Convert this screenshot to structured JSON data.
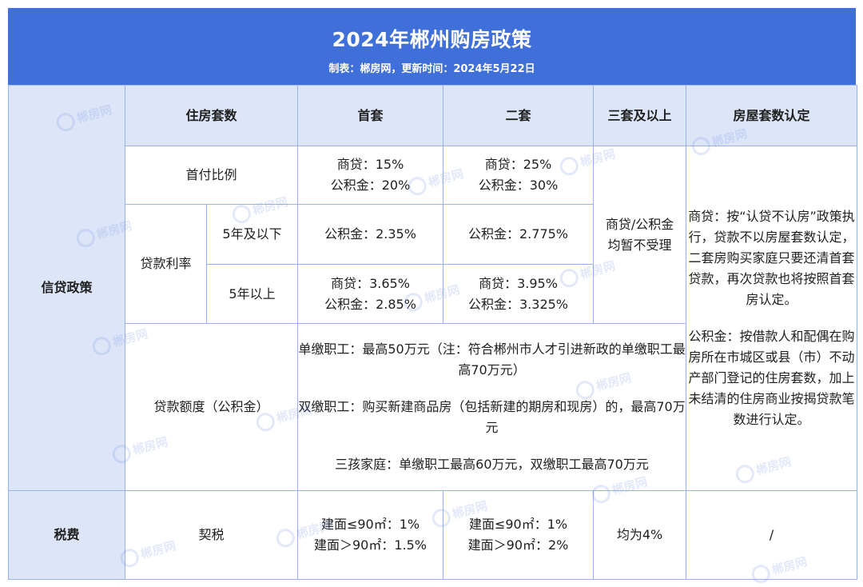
{
  "header": {
    "title": "2024年郴州购房政策",
    "subtitle": "制表：郴房网，更新时间：2024年5月22日"
  },
  "columns": {
    "housing_count": "住房套数",
    "first": "首套",
    "second": "二套",
    "third_plus": "三套及以上",
    "identification": "房屋套数认定"
  },
  "categories": {
    "credit": "信贷政策",
    "tax": "税费"
  },
  "down_payment": {
    "label": "首付比例",
    "first_line1": "商贷：15%",
    "first_line2": "公积金：20%",
    "second_line1": "商贷：25%",
    "second_line2": "公积金：30%"
  },
  "third_plus_note": {
    "line1": "商贷/公积金",
    "line2": "均暂不受理"
  },
  "interest": {
    "label": "贷款利率",
    "under5_label": "5年及以下",
    "under5_first": "公积金：2.35%",
    "under5_second": "公积金：2.775%",
    "over5_label": "5年以上",
    "over5_first_line1": "商贷：3.65%",
    "over5_first_line2": "公积金：2.85%",
    "over5_second_line1": "商贷：3.95%",
    "over5_second_line2": "公积金：3.325%"
  },
  "identification": {
    "commercial": "商贷：按“认贷不认房”政策执行，贷款不以房屋套数认定，二套房购买家庭只要还清首套贷款，再次贷款也将按照首套房认定。",
    "fund": "公积金：按借款人和配偶在购房所在市城区或县（市）不动产部门登记的住房套数，加上未结清的住房商业按揭贷款笔数进行认定。"
  },
  "loan_limit": {
    "label": "贷款额度（公积金）",
    "single": "单缴职工：最高50万元（注：符合郴州市人才引进新政的单缴职工最高70万元）",
    "double": "双缴职工：购买新建商品房（包括新建的期房和现房）的，最高70万元",
    "three_child": "三孩家庭：单缴职工最高60万元，双缴职工最高70万元"
  },
  "tax": {
    "label": "契税",
    "first_line1": "建面≤90㎡：1%",
    "first_line2": "建面＞90㎡：1.5%",
    "second_line1": "建面≤90㎡：1%",
    "second_line2": "建面＞90㎡：2%",
    "third_plus": "均为4%",
    "identification": "/"
  },
  "watermark": {
    "text": "郴房网"
  }
}
